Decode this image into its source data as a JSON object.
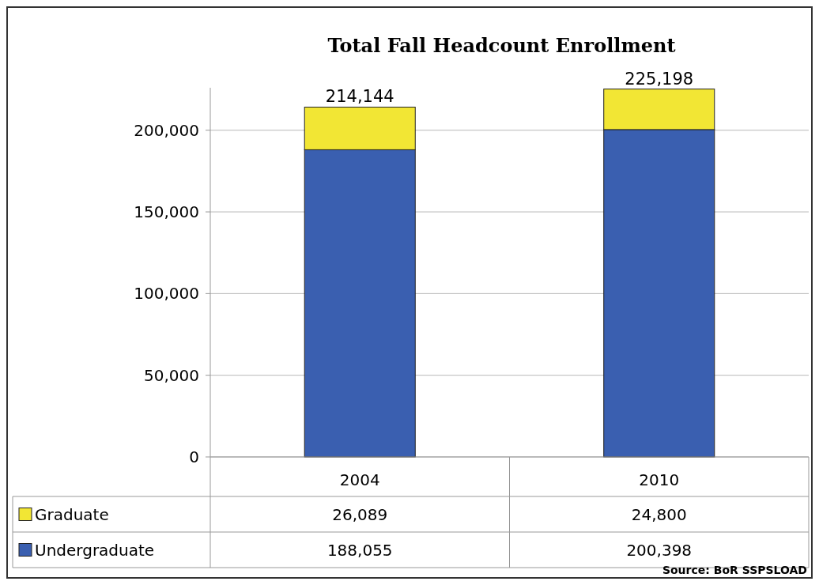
{
  "chart_data": {
    "type": "bar",
    "title": "Total Fall Headcount Enrollment",
    "categories": [
      "2004",
      "2010"
    ],
    "stacked": true,
    "series": [
      {
        "name": "Undergraduate",
        "color": "#3a5fb0",
        "values": [
          188055,
          200398
        ],
        "value_labels": [
          "188,055",
          "200,398"
        ]
      },
      {
        "name": "Graduate",
        "color": "#f2e634",
        "values": [
          26089,
          24800
        ],
        "value_labels": [
          "26,089",
          "24,800"
        ]
      }
    ],
    "ylim": [
      0,
      226000
    ],
    "yticks": [
      {
        "value": 0,
        "label": "0"
      },
      {
        "value": 50000,
        "label": "50,000"
      },
      {
        "value": 100000,
        "label": "100,000"
      },
      {
        "value": 150000,
        "label": "150,000"
      },
      {
        "value": 200000,
        "label": "200,000"
      }
    ],
    "grid": "y",
    "totals": [
      "214,144",
      "225,198"
    ],
    "legend": "bottom left",
    "annotations": [
      "Source: BoR  SSPSLOAD"
    ]
  }
}
